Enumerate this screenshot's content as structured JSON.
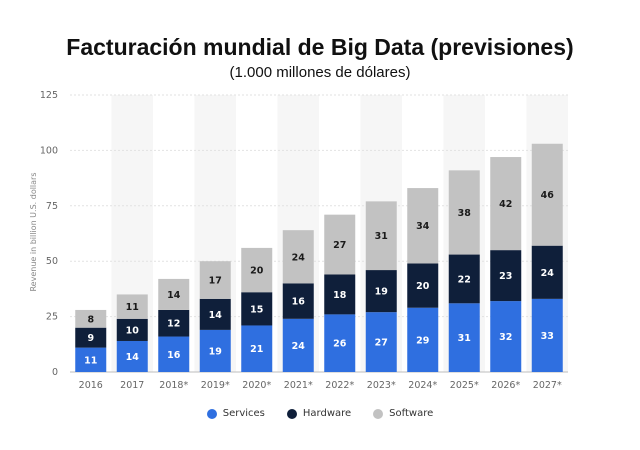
{
  "header": {
    "title": "Facturación mundial de Big Data (previsiones)",
    "subtitle": "(1.000 millones de dólares)"
  },
  "chart_data": {
    "type": "bar",
    "stacked": true,
    "categories": [
      "2016",
      "2017",
      "2018*",
      "2019*",
      "2020*",
      "2021*",
      "2022*",
      "2023*",
      "2024*",
      "2025*",
      "2026*",
      "2027*"
    ],
    "series": [
      {
        "name": "Services",
        "color": "#2f6fe0",
        "values": [
          11,
          14,
          16,
          19,
          21,
          24,
          26,
          27,
          29,
          31,
          32,
          33
        ]
      },
      {
        "name": "Hardware",
        "color": "#0f1f3a",
        "values": [
          9,
          10,
          12,
          14,
          15,
          16,
          18,
          19,
          20,
          22,
          23,
          24
        ]
      },
      {
        "name": "Software",
        "color": "#c2c2c2",
        "values": [
          8,
          11,
          14,
          17,
          20,
          24,
          27,
          31,
          34,
          38,
          42,
          46
        ]
      }
    ],
    "ylabel": "Revenue in billion U.S. dollars",
    "xlabel": "",
    "ylim": [
      0,
      125
    ],
    "yticks": [
      0,
      25,
      50,
      75,
      100,
      125
    ],
    "grid": true,
    "legend_position": "bottom-center"
  }
}
